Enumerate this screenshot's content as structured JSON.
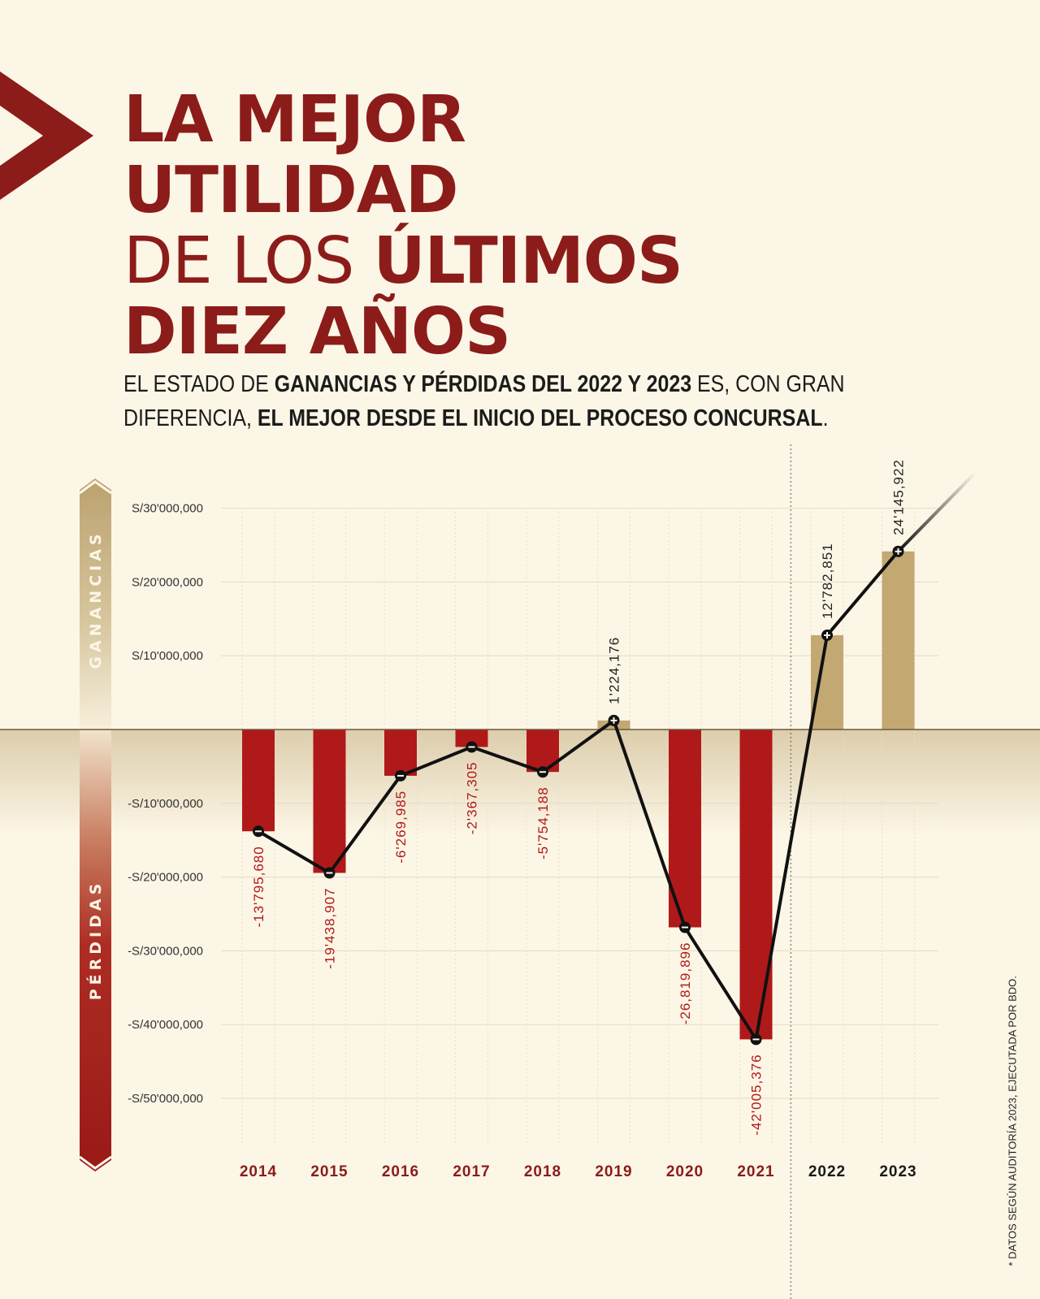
{
  "header": {
    "title_lines": [
      {
        "parts": [
          {
            "text": "LA MEJOR",
            "bold": true
          }
        ]
      },
      {
        "parts": [
          {
            "text": "UTILIDAD",
            "bold": true
          }
        ]
      },
      {
        "parts": [
          {
            "text": "DE LOS ",
            "bold": false
          },
          {
            "text": "ÚLTIMOS",
            "bold": true
          }
        ]
      },
      {
        "parts": [
          {
            "text": "DIEZ AÑOS",
            "bold": true
          }
        ]
      }
    ],
    "subtitle_lines": [
      {
        "parts": [
          {
            "text": "EL ESTADO DE ",
            "bold": false
          },
          {
            "text": "GANANCIAS Y PÉRDIDAS DEL 2022 Y 2023",
            "bold": true
          },
          {
            "text": " ES, CON GRAN",
            "bold": false
          }
        ]
      },
      {
        "parts": [
          {
            "text": "DIFERENCIA, ",
            "bold": false
          },
          {
            "text": "EL MEJOR DESDE EL INICIO DEL PROCESO CONCURSAL",
            "bold": true
          },
          {
            "text": ".",
            "bold": false
          }
        ]
      }
    ]
  },
  "side_labels": {
    "gains": "GANANCIAS",
    "losses": "PÉRDIDAS"
  },
  "footnote": "* DATOS SEGÚN AUDITORÍA 2023, EJECUTADA POR BDO.",
  "colors": {
    "brand_red": "#8b1c1a",
    "loss_bar": "#b01919",
    "gain_bar": "#c4a872",
    "line": "#111111",
    "background": "#fcf6e6"
  },
  "chart_data": {
    "type": "bar",
    "categories": [
      "2014",
      "2015",
      "2016",
      "2017",
      "2018",
      "2019",
      "2020",
      "2021",
      "2022",
      "2023"
    ],
    "values": [
      -13795680,
      -19438907,
      -6269985,
      -2367305,
      -5754188,
      1224176,
      -26819896,
      -42005376,
      12782851,
      24145922
    ],
    "value_labels": [
      "-13'795,680",
      "-19'438,907",
      "-6'269,985",
      "-2'367,305",
      "-5'754,188",
      "1'224,176",
      "-26,819,896",
      "-42'005,376",
      "12'782,851",
      "24'145,922"
    ],
    "overlay": "line connecting the same values with point markers",
    "y_ticks": [
      {
        "value": 30000000,
        "label": "S/30'000,000"
      },
      {
        "value": 20000000,
        "label": "S/20'000,000"
      },
      {
        "value": 10000000,
        "label": "S/10'000,000"
      },
      {
        "value": -10000000,
        "label": "-S/10'000,000"
      },
      {
        "value": -20000000,
        "label": "-S/20'000,000"
      },
      {
        "value": -30000000,
        "label": "-S/30'000,000"
      },
      {
        "value": -40000000,
        "label": "-S/40'000,000"
      },
      {
        "value": -50000000,
        "label": "-S/50'000,000"
      }
    ],
    "ylim": [
      -58000000,
      38000000
    ],
    "grid": true,
    "highlight_from_category": "2022"
  }
}
